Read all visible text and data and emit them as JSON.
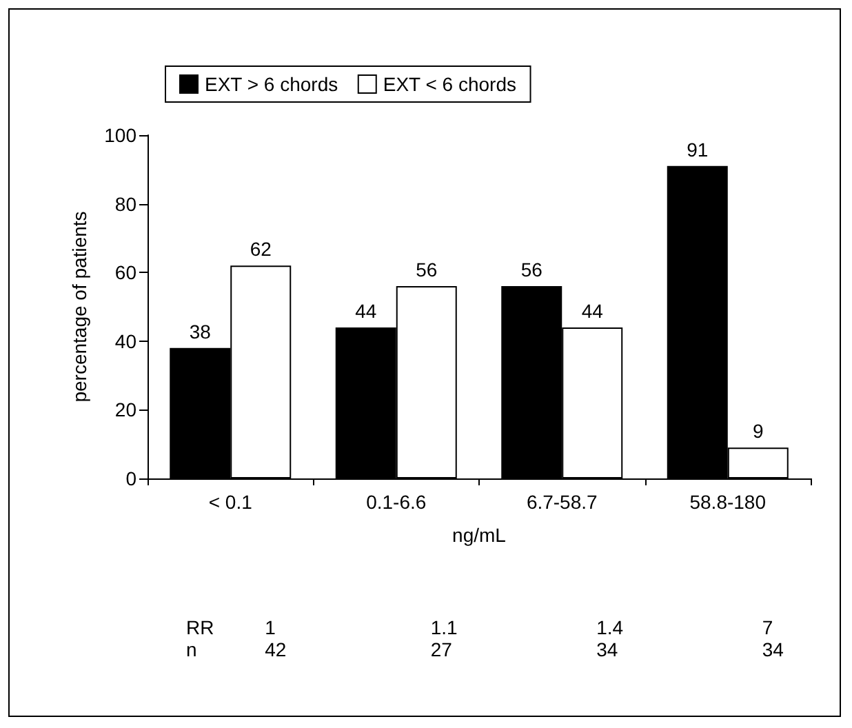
{
  "chart_data": {
    "type": "bar",
    "xlabel": "ng/mL",
    "ylabel": "percentage of patients",
    "categories": [
      "< 0.1",
      "0.1-6.6",
      "6.7-58.7",
      "58.8-180"
    ],
    "series": [
      {
        "name": "EXT > 6 chords",
        "color": "#000000",
        "values": [
          38,
          44,
          56,
          91
        ]
      },
      {
        "name": "EXT < 6 chords",
        "color": "#ffffff",
        "values": [
          62,
          56,
          44,
          9
        ]
      }
    ],
    "ylim": [
      0,
      100
    ],
    "yticks": [
      0,
      20,
      40,
      60,
      80,
      100
    ],
    "grid": false,
    "legend": "top",
    "data_labels": true,
    "annotations": [
      "RR",
      "1",
      "1.1",
      "1.4",
      "7",
      "n",
      "42",
      "27",
      "34",
      "34"
    ]
  }
}
